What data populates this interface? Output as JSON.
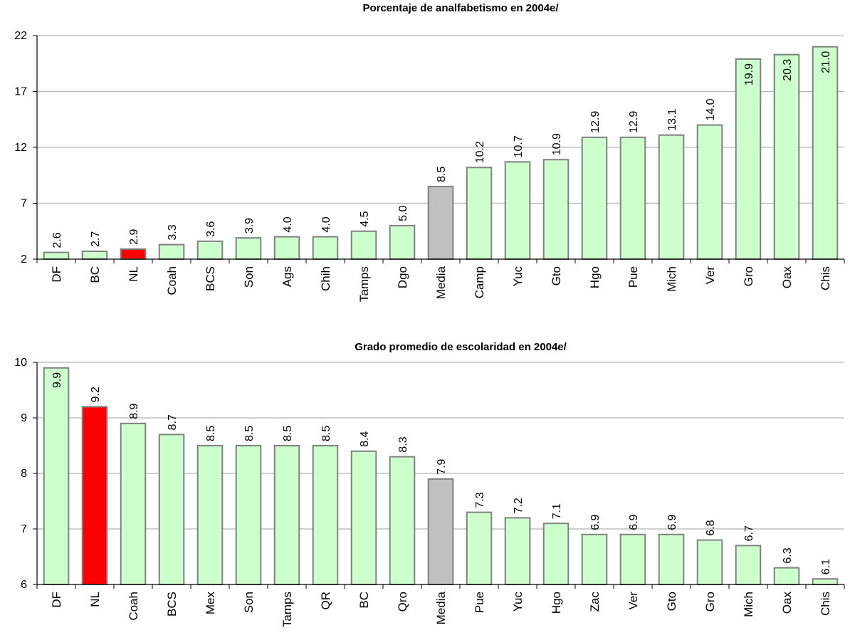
{
  "chart_data": [
    {
      "type": "bar",
      "title": "Porcentaje de analfabetismo en 2004e/",
      "xlabel": "",
      "ylabel": "",
      "ylim": [
        2,
        22
      ],
      "yticks": [
        2,
        7,
        12,
        17,
        22
      ],
      "grid": true,
      "legend": "none",
      "categories": [
        "DF",
        "BC",
        "NL",
        "Coah",
        "BCS",
        "Son",
        "Ags",
        "Chih",
        "Tamps",
        "Dgo",
        "Media",
        "Camp",
        "Yuc",
        "Gto",
        "Hgo",
        "Pue",
        "Mich",
        "Ver",
        "Gro",
        "Oax",
        "Chis"
      ],
      "values": [
        2.6,
        2.7,
        2.9,
        3.3,
        3.6,
        3.9,
        4.0,
        4.0,
        4.5,
        5.0,
        8.5,
        10.2,
        10.7,
        10.9,
        12.9,
        12.9,
        13.1,
        14.0,
        19.9,
        20.3,
        21.0
      ],
      "labels": [
        "2.6",
        "2.7",
        "2.9",
        "3.3",
        "3.6",
        "3.9",
        "4.0",
        "4.0",
        "4.5",
        "5.0",
        "8.5",
        "10.2",
        "10.7",
        "10.9",
        "12.9",
        "12.9",
        "13.1",
        "14.0",
        "19.9",
        "20.3",
        "21.0"
      ],
      "highlight": {
        "NL": "#ff0000",
        "Media": "#c0c0c0"
      }
    },
    {
      "type": "bar",
      "title": "Grado promedio de escolaridad en 2004e/",
      "xlabel": "",
      "ylabel": "",
      "ylim": [
        6,
        10
      ],
      "yticks": [
        6,
        7,
        8,
        9,
        10
      ],
      "grid": true,
      "legend": "none",
      "categories": [
        "DF",
        "NL",
        "Coah",
        "BCS",
        "Mex",
        "Son",
        "Tamps",
        "QR",
        "BC",
        "Qro",
        "Media",
        "Pue",
        "Yuc",
        "Hgo",
        "Zac",
        "Ver",
        "Gto",
        "Gro",
        "Mich",
        "Oax",
        "Chis"
      ],
      "values": [
        9.9,
        9.2,
        8.9,
        8.7,
        8.5,
        8.5,
        8.5,
        8.5,
        8.4,
        8.3,
        7.9,
        7.3,
        7.2,
        7.1,
        6.9,
        6.9,
        6.9,
        6.8,
        6.7,
        6.3,
        6.1
      ],
      "labels": [
        "9.9",
        "9.2",
        "8.9",
        "8.7",
        "8.5",
        "8.5",
        "8.5",
        "8.5",
        "8.4",
        "8.3",
        "7.9",
        "7.3",
        "7.2",
        "7.1",
        "6.9",
        "6.9",
        "6.9",
        "6.8",
        "6.7",
        "6.3",
        "6.1"
      ],
      "highlight": {
        "NL": "#ff0000",
        "Media": "#c0c0c0"
      }
    }
  ],
  "colors": {
    "bar_default": "#ccffcc",
    "bar_stroke": "#808080",
    "gridline": "#b3b3b3",
    "axis": "#000000"
  }
}
